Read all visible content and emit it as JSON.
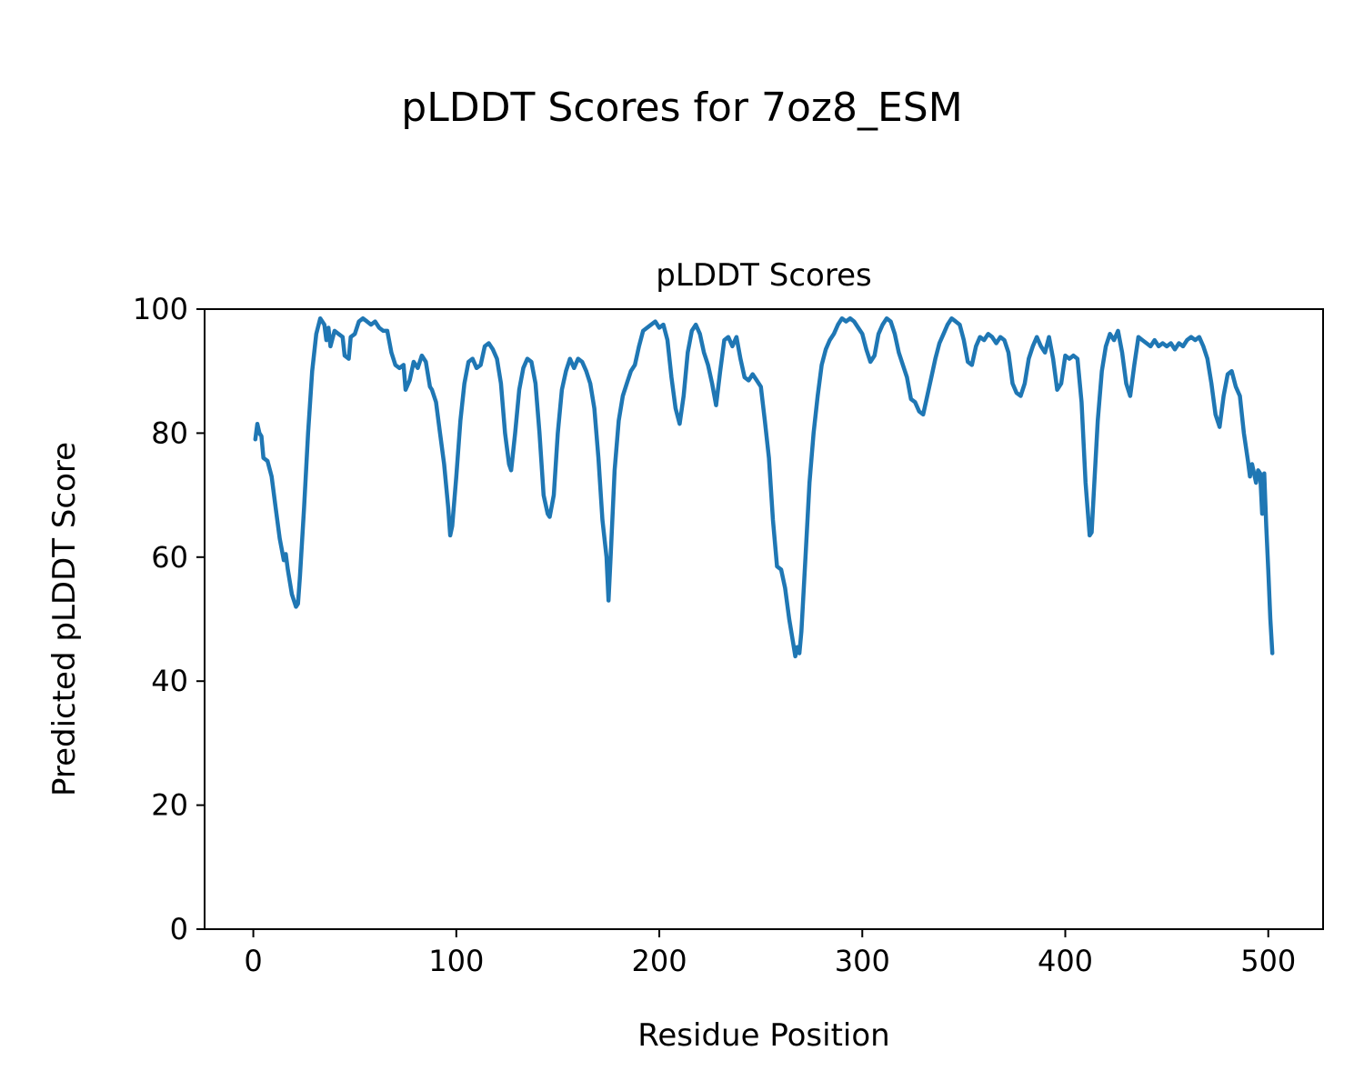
{
  "figure": {
    "suptitle": "pLDDT Scores for 7oz8_ESM",
    "axes_title": "pLDDT Scores",
    "xlabel": "Residue Position",
    "ylabel": "Predicted pLDDT Score"
  },
  "chart_data": {
    "type": "line",
    "title": "pLDDT Scores",
    "suptitle": "pLDDT Scores for 7oz8_ESM",
    "xlabel": "Residue Position",
    "ylabel": "Predicted pLDDT Score",
    "xlim": [
      -24,
      527
    ],
    "ylim": [
      0,
      100
    ],
    "xticks": [
      0,
      100,
      200,
      300,
      400,
      500
    ],
    "yticks": [
      0,
      20,
      40,
      60,
      80,
      100
    ],
    "grid": false,
    "legend": "none",
    "line_color": "#1f77b4",
    "series": [
      {
        "name": "pLDDT",
        "x": [
          1,
          2,
          3,
          4,
          5,
          7,
          9,
          11,
          13,
          15,
          16,
          17,
          19,
          21,
          22,
          23,
          25,
          27,
          29,
          31,
          33,
          35,
          36,
          37,
          38,
          40,
          42,
          44,
          45,
          47,
          48,
          50,
          52,
          54,
          56,
          58,
          60,
          62,
          64,
          66,
          68,
          70,
          72,
          74,
          75,
          77,
          79,
          81,
          83,
          85,
          87,
          88,
          90,
          92,
          94,
          96,
          97,
          98,
          100,
          102,
          104,
          106,
          108,
          110,
          112,
          114,
          116,
          118,
          120,
          122,
          124,
          126,
          127,
          129,
          131,
          133,
          135,
          137,
          139,
          141,
          143,
          145,
          146,
          148,
          150,
          152,
          154,
          156,
          158,
          160,
          162,
          164,
          166,
          168,
          170,
          172,
          174,
          175,
          176,
          178,
          180,
          182,
          184,
          186,
          188,
          190,
          192,
          194,
          196,
          198,
          200,
          202,
          204,
          206,
          208,
          210,
          212,
          214,
          216,
          218,
          220,
          222,
          224,
          226,
          228,
          230,
          232,
          234,
          236,
          238,
          240,
          242,
          244,
          246,
          248,
          250,
          252,
          254,
          256,
          258,
          260,
          262,
          264,
          266,
          267,
          268,
          269,
          270,
          272,
          274,
          276,
          278,
          280,
          282,
          284,
          286,
          288,
          290,
          292,
          294,
          296,
          298,
          300,
          302,
          304,
          306,
          308,
          310,
          312,
          314,
          316,
          318,
          320,
          322,
          324,
          326,
          328,
          330,
          332,
          334,
          336,
          338,
          340,
          342,
          344,
          346,
          348,
          350,
          352,
          354,
          356,
          358,
          360,
          362,
          364,
          366,
          368,
          370,
          372,
          374,
          376,
          378,
          380,
          382,
          384,
          386,
          388,
          390,
          392,
          394,
          396,
          398,
          400,
          402,
          404,
          406,
          408,
          410,
          412,
          413,
          414,
          416,
          418,
          420,
          422,
          424,
          426,
          428,
          430,
          432,
          434,
          436,
          438,
          440,
          442,
          444,
          446,
          448,
          450,
          452,
          454,
          456,
          458,
          460,
          462,
          464,
          466,
          468,
          470,
          472,
          474,
          476,
          478,
          480,
          482,
          484,
          486,
          488,
          490,
          491,
          492,
          493,
          494,
          495,
          496,
          497,
          498,
          499,
          500,
          501,
          502
        ],
        "y": [
          79,
          81.5,
          80,
          79.5,
          76,
          75.5,
          73,
          68,
          63,
          59.5,
          60.5,
          58,
          54,
          52,
          52.5,
          57,
          68,
          80,
          90,
          96,
          98.5,
          97.5,
          95,
          97,
          94,
          96.5,
          96,
          95.5,
          92.5,
          92,
          95.5,
          96,
          98,
          98.5,
          98,
          97.5,
          98,
          97,
          96.5,
          96.5,
          93,
          91,
          90.5,
          91,
          87,
          88.5,
          91.5,
          90.5,
          92.5,
          91.5,
          87.5,
          87,
          85,
          80,
          75,
          68,
          63.5,
          65,
          73,
          82,
          88,
          91.5,
          92,
          90.5,
          91,
          94,
          94.5,
          93.5,
          92,
          88,
          80,
          75,
          74,
          80,
          87,
          90.5,
          92,
          91.5,
          88,
          80,
          70,
          67,
          66.5,
          70,
          80,
          87,
          90,
          92,
          90.5,
          92,
          91.5,
          90,
          88,
          84,
          76,
          66,
          60,
          53,
          60,
          74,
          82,
          86,
          88,
          90,
          91,
          94,
          96.5,
          97,
          97.5,
          98,
          97,
          97.5,
          95,
          89,
          84,
          81.5,
          86,
          93,
          96.5,
          97.5,
          96,
          93,
          91,
          88,
          84.5,
          90,
          95,
          95.5,
          94,
          95.5,
          92,
          89,
          88.5,
          89.5,
          88.5,
          87.5,
          82,
          76,
          66,
          58.5,
          58,
          55,
          50,
          46,
          44,
          45.5,
          44.5,
          48,
          60,
          72,
          80,
          86,
          91,
          93.5,
          95,
          96,
          97.5,
          98.5,
          98,
          98.5,
          98,
          97,
          96,
          93.5,
          91.5,
          92.5,
          96,
          97.5,
          98.5,
          98,
          96,
          93,
          91,
          89,
          85.5,
          85,
          83.5,
          83,
          86,
          89,
          92,
          94.5,
          96,
          97.5,
          98.5,
          98,
          97.5,
          95,
          91.5,
          91,
          94,
          95.5,
          95,
          96,
          95.5,
          94.5,
          95.5,
          95,
          93,
          88,
          86.5,
          86,
          88,
          92,
          94,
          95.5,
          94,
          93,
          95.5,
          92,
          87,
          88,
          92.5,
          92,
          92.5,
          92,
          85,
          72,
          63.5,
          64,
          70,
          82,
          90,
          94,
          96,
          95,
          96.5,
          93,
          88,
          86,
          91,
          95.5,
          95,
          94.5,
          94,
          95,
          94,
          94.5,
          94,
          94.5,
          93.5,
          94.5,
          94,
          95,
          95.5,
          95,
          95.5,
          94,
          92,
          88,
          83,
          81,
          86,
          89.5,
          90,
          87.5,
          86,
          80,
          75.5,
          73,
          75,
          73.5,
          72,
          74,
          73.5,
          67,
          73.5,
          65,
          58,
          50,
          44.5
        ]
      }
    ]
  }
}
